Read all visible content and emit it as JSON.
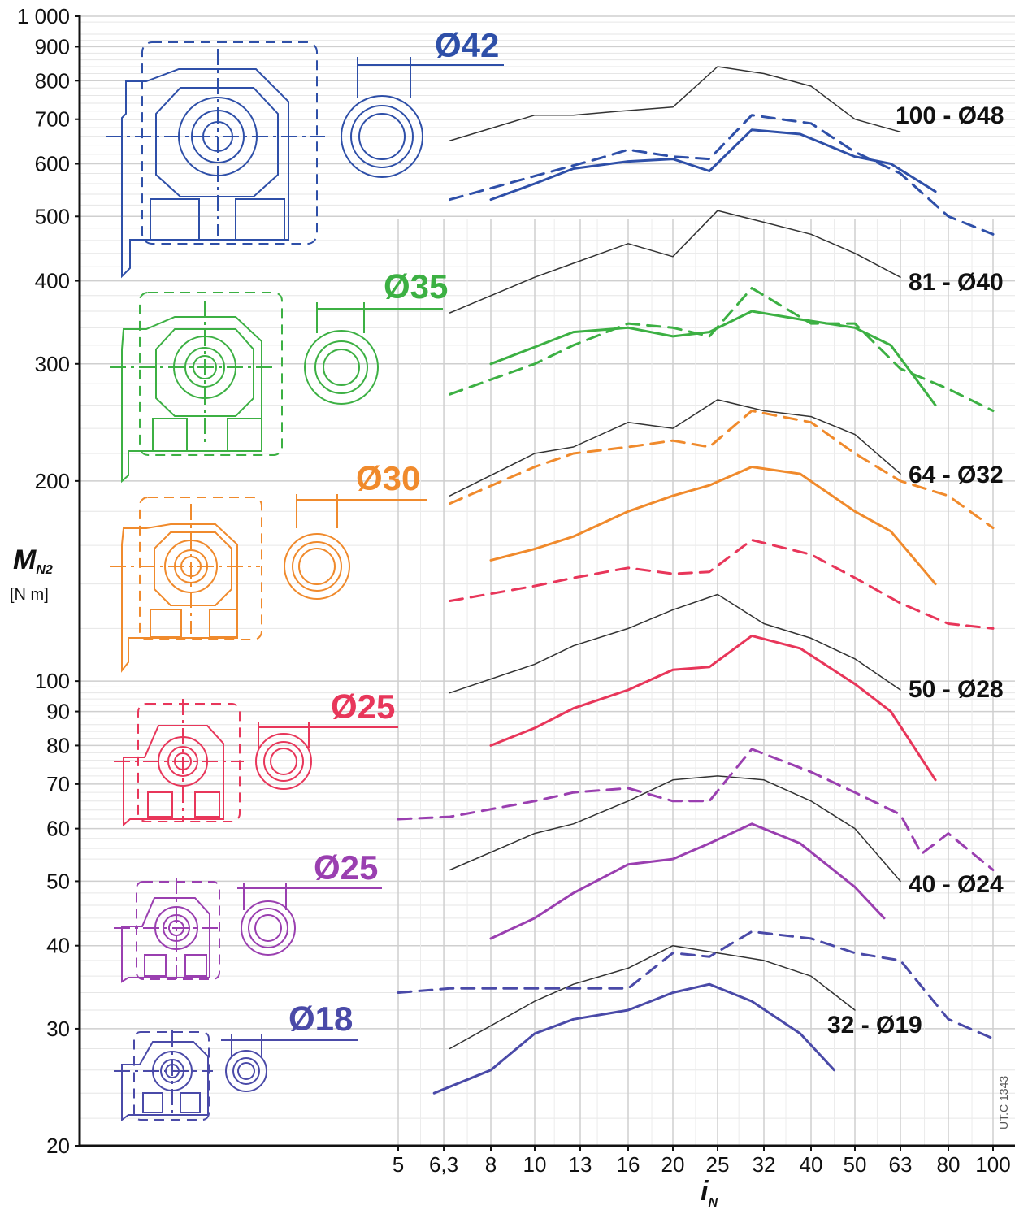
{
  "chart_data": {
    "type": "line",
    "y_axis": {
      "label": "M",
      "label_sub": "N2",
      "unit": "[N m]",
      "scale": "log",
      "ylim": [
        20,
        1000
      ],
      "ticks": [
        {
          "v": 20,
          "t": "20"
        },
        {
          "v": 30,
          "t": "30"
        },
        {
          "v": 40,
          "t": "40"
        },
        {
          "v": 50,
          "t": "50"
        },
        {
          "v": 60,
          "t": "60"
        },
        {
          "v": 70,
          "t": "70"
        },
        {
          "v": 80,
          "t": "80"
        },
        {
          "v": 90,
          "t": "90"
        },
        {
          "v": 100,
          "t": "100"
        },
        {
          "v": 200,
          "t": "200"
        },
        {
          "v": 300,
          "t": "300"
        },
        {
          "v": 400,
          "t": "400"
        },
        {
          "v": 500,
          "t": "500"
        },
        {
          "v": 600,
          "t": "600"
        },
        {
          "v": 700,
          "t": "700"
        },
        {
          "v": 800,
          "t": "800"
        },
        {
          "v": 900,
          "t": "900"
        },
        {
          "v": 1000,
          "t": "1 000"
        }
      ]
    },
    "x_axis": {
      "label": "i",
      "label_sub": "N",
      "scale": "log",
      "xlim": [
        5,
        100
      ],
      "ticks": [
        {
          "v": 5,
          "t": "5"
        },
        {
          "v": 6.3,
          "t": "6,3"
        },
        {
          "v": 8,
          "t": "8"
        },
        {
          "v": 10,
          "t": "10"
        },
        {
          "v": 13,
          "t": "13"
        },
        {
          "v": 16,
          "t": "16"
        },
        {
          "v": 20,
          "t": "20"
        },
        {
          "v": 25,
          "t": "25"
        },
        {
          "v": 32,
          "t": "32"
        },
        {
          "v": 40,
          "t": "40"
        },
        {
          "v": 50,
          "t": "50"
        },
        {
          "v": 63,
          "t": "63"
        },
        {
          "v": 80,
          "t": "80"
        },
        {
          "v": 100,
          "t": "100"
        }
      ]
    },
    "grid": true,
    "colors": {
      "black": "#333333",
      "blue": "#2e4fa8",
      "green": "#3cb043",
      "orange": "#f08a2c",
      "red": "#e8365a",
      "purple": "#9a3fb0",
      "indigo": "#4a4aa8"
    },
    "diameter_labels": [
      {
        "text": "Ø42",
        "color": "blue"
      },
      {
        "text": "Ø35",
        "color": "green"
      },
      {
        "text": "Ø30",
        "color": "orange"
      },
      {
        "text": "Ø25",
        "color": "red"
      },
      {
        "text": "Ø25",
        "color": "purple"
      },
      {
        "text": "Ø18",
        "color": "indigo"
      }
    ],
    "series_labels": [
      "100 - Ø48",
      "81 - Ø40",
      "64 - Ø32",
      "50 - Ø28",
      "40 - Ø24",
      "32 - Ø19"
    ],
    "code": "UT.C 1343",
    "series": [
      {
        "group": "100 - Ø48",
        "color": "black",
        "style": "thin",
        "x": [
          6.5,
          10,
          12.5,
          15.5,
          20,
          25,
          32,
          40,
          50,
          63
        ],
        "y": [
          650,
          710,
          710,
          720,
          730,
          840,
          820,
          785,
          700,
          670
        ]
      },
      {
        "group": "100 - Ø48",
        "color": "blue",
        "style": "solid",
        "x": [
          8,
          10,
          12.5,
          16,
          20,
          24,
          30,
          38,
          50,
          60,
          75
        ],
        "y": [
          530,
          560,
          590,
          605,
          610,
          585,
          675,
          665,
          615,
          600,
          545
        ]
      },
      {
        "group": "100 - Ø48",
        "color": "blue",
        "style": "dashed",
        "x": [
          6.5,
          10,
          14,
          16,
          20,
          24,
          30,
          40,
          50,
          63,
          80,
          100
        ],
        "y": [
          530,
          575,
          610,
          630,
          615,
          610,
          710,
          690,
          625,
          580,
          500,
          470
        ]
      },
      {
        "group": "81 - Ø40",
        "color": "black",
        "style": "thin",
        "x": [
          6.5,
          10,
          12.5,
          16,
          20,
          25,
          32,
          40,
          50,
          63
        ],
        "y": [
          358,
          405,
          425,
          455,
          435,
          510,
          490,
          470,
          440,
          405
        ]
      },
      {
        "group": "81 - Ø40",
        "color": "green",
        "style": "solid",
        "x": [
          8,
          10,
          12.5,
          16,
          20,
          24,
          30,
          38,
          50,
          60,
          75
        ],
        "y": [
          300,
          318,
          335,
          340,
          330,
          335,
          360,
          350,
          340,
          320,
          260
        ]
      },
      {
        "group": "81 - Ø40",
        "color": "green",
        "style": "dashed",
        "x": [
          6.5,
          10,
          12.5,
          16,
          20,
          24,
          30,
          40,
          50,
          63,
          80,
          100
        ],
        "y": [
          270,
          300,
          320,
          345,
          340,
          330,
          390,
          345,
          345,
          295,
          275,
          255
        ]
      },
      {
        "group": "64 - Ø32",
        "color": "black",
        "style": "thin",
        "x": [
          6.5,
          10,
          12.5,
          16,
          20,
          25,
          32,
          40,
          50,
          63
        ],
        "y": [
          190,
          220,
          225,
          245,
          240,
          265,
          255,
          250,
          235,
          205
        ]
      },
      {
        "group": "64 - Ø32",
        "color": "orange",
        "style": "solid",
        "x": [
          8,
          10,
          12.5,
          16,
          20,
          24,
          30,
          38,
          50,
          60,
          75
        ],
        "y": [
          152,
          158,
          165,
          180,
          190,
          197,
          210,
          205,
          180,
          168,
          140
        ]
      },
      {
        "group": "64 - Ø32",
        "color": "orange",
        "style": "dashed",
        "x": [
          6.5,
          10,
          12.5,
          16,
          20,
          24,
          30,
          40,
          50,
          63,
          80,
          100
        ],
        "y": [
          185,
          210,
          220,
          225,
          230,
          225,
          255,
          245,
          220,
          200,
          190,
          170
        ]
      },
      {
        "group": "50 - Ø28",
        "color": "black",
        "style": "thin",
        "x": [
          6.5,
          10,
          12.5,
          16,
          20,
          25,
          32,
          40,
          50,
          63
        ],
        "y": [
          96,
          106,
          113,
          120,
          128,
          135,
          122,
          116,
          108,
          97
        ]
      },
      {
        "group": "50 - Ø28",
        "color": "red",
        "style": "solid",
        "x": [
          8,
          10,
          12.5,
          16,
          20,
          24,
          30,
          38,
          50,
          60,
          75
        ],
        "y": [
          80,
          85,
          91,
          97,
          104,
          105,
          117,
          112,
          99,
          90,
          71
        ]
      },
      {
        "group": "50 - Ø28",
        "color": "red",
        "style": "dashed",
        "x": [
          6.5,
          10,
          12.5,
          16,
          20,
          24,
          30,
          40,
          50,
          63,
          80,
          100
        ],
        "y": [
          132,
          139,
          143,
          148,
          145,
          146,
          163,
          155,
          143,
          131,
          122,
          120
        ]
      },
      {
        "group": "40 - Ø24",
        "color": "black",
        "style": "thin",
        "x": [
          6.5,
          10,
          12.5,
          16,
          20,
          25,
          32,
          40,
          50,
          63
        ],
        "y": [
          52,
          59,
          61,
          66,
          71,
          72,
          71,
          66,
          60,
          50
        ]
      },
      {
        "group": "40 - Ø24",
        "color": "purple",
        "style": "solid",
        "x": [
          8,
          10,
          12.5,
          16,
          20,
          24,
          30,
          38,
          50,
          58
        ],
        "y": [
          41,
          44,
          48,
          53,
          54,
          57,
          61,
          57,
          49,
          44
        ]
      },
      {
        "group": "40 - Ø24",
        "color": "purple",
        "style": "dashed",
        "x": [
          5,
          6.5,
          10,
          12.5,
          16,
          20,
          24,
          30,
          40,
          50,
          63,
          70,
          80,
          100
        ],
        "y": [
          62,
          62.5,
          66,
          68,
          69,
          66,
          66,
          79,
          73,
          68,
          63,
          55,
          59,
          52
        ]
      },
      {
        "group": "32 - Ø19",
        "color": "black",
        "style": "thin",
        "x": [
          6.5,
          10,
          12.5,
          16,
          20,
          25,
          32,
          40,
          50
        ],
        "y": [
          28,
          33,
          35,
          37,
          40,
          39,
          38,
          36,
          32
        ]
      },
      {
        "group": "32 - Ø19",
        "color": "indigo",
        "style": "solid",
        "x": [
          6,
          8,
          10,
          12.5,
          16,
          20,
          24,
          30,
          38,
          45
        ],
        "y": [
          24,
          26,
          29.5,
          31,
          32,
          34,
          35,
          33,
          29.5,
          26
        ]
      },
      {
        "group": "32 - Ø19",
        "color": "indigo",
        "style": "dashed",
        "x": [
          5,
          6.5,
          10,
          12.5,
          16,
          20,
          24,
          30,
          40,
          50,
          63,
          80,
          100
        ],
        "y": [
          34,
          34.5,
          34.5,
          34.5,
          34.5,
          39,
          38.5,
          42,
          41,
          39,
          38,
          31,
          29
        ]
      }
    ]
  }
}
